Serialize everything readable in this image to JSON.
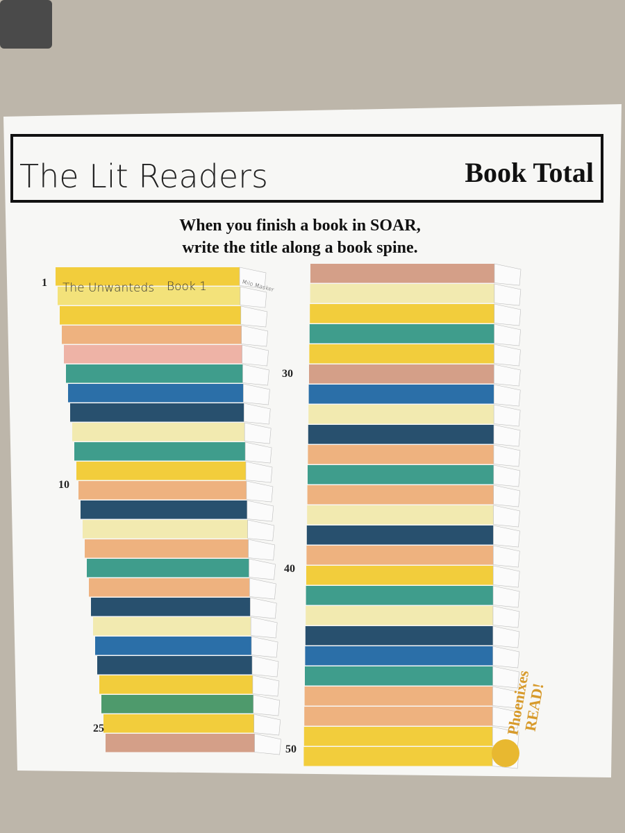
{
  "header": {
    "title": "The Lit Readers",
    "subtitle": "Book Total"
  },
  "instructions": [
    "When you finish a book in SOAR,",
    "write the title along a book spine."
  ],
  "book_1": {
    "title": "The Unwanteds",
    "volume": "Book 1",
    "reader": "Milo Masker"
  },
  "count_labels": [
    1,
    10,
    25,
    30,
    40,
    50
  ],
  "logo": {
    "line1": "Phoenixes",
    "line2": "READ!"
  }
}
